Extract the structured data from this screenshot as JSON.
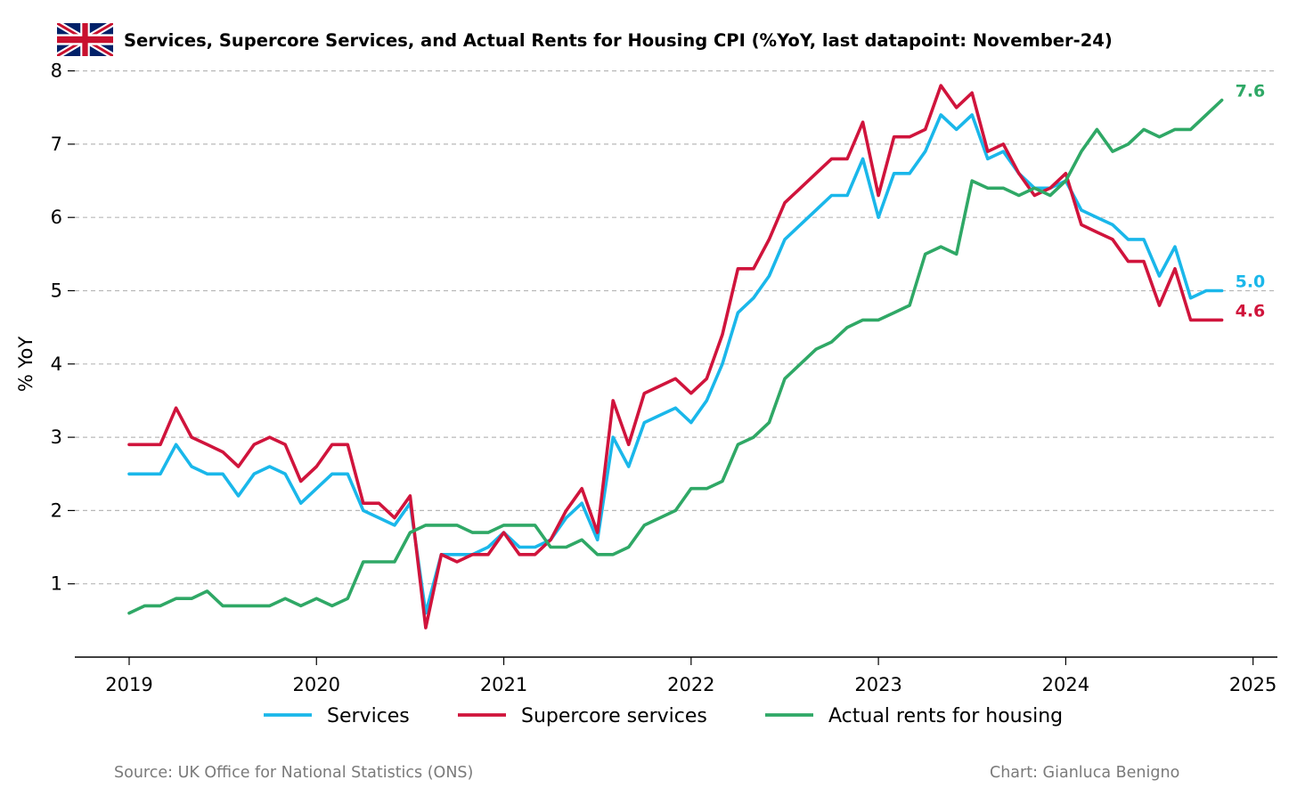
{
  "chart_data": {
    "type": "line",
    "title": "Services, Supercore Services, and Actual Rents for Housing CPI (%YoY, last datapoint: November-24)",
    "flag_icon": "uk-flag-icon",
    "ylabel": "% YoY",
    "xlabel": "",
    "ylim": [
      0,
      8
    ],
    "xlim": [
      2018.71,
      2025.13
    ],
    "yticks": [
      1,
      2,
      3,
      4,
      5,
      6,
      7,
      8
    ],
    "xticks": [
      "2019",
      "2020",
      "2021",
      "2022",
      "2023",
      "2024",
      "2025"
    ],
    "grid": "horizontal dashed",
    "legend_position": "bottom",
    "start": "2019-01",
    "series": [
      {
        "name": "Services",
        "color": "#1ab7ea",
        "end_label": "5.0",
        "values": [
          2.5,
          2.5,
          2.5,
          2.9,
          2.6,
          2.5,
          2.5,
          2.2,
          2.5,
          2.6,
          2.5,
          2.1,
          2.3,
          2.5,
          2.5,
          2.0,
          1.9,
          1.8,
          2.1,
          0.6,
          1.4,
          1.4,
          1.4,
          1.5,
          1.7,
          1.5,
          1.5,
          1.6,
          1.9,
          2.1,
          1.6,
          3.0,
          2.6,
          3.2,
          3.3,
          3.4,
          3.2,
          3.5,
          4.0,
          4.7,
          4.9,
          5.2,
          5.7,
          5.9,
          6.1,
          6.3,
          6.3,
          6.8,
          6.0,
          6.6,
          6.6,
          6.9,
          7.4,
          7.2,
          7.4,
          6.8,
          6.9,
          6.6,
          6.4,
          6.4,
          6.5,
          6.1,
          6.0,
          5.9,
          5.7,
          5.7,
          5.2,
          5.6,
          4.9,
          5.0,
          5.0
        ]
      },
      {
        "name": "Supercore services",
        "color": "#d0143c",
        "end_label": "4.6",
        "values": [
          2.9,
          2.9,
          2.9,
          3.4,
          3.0,
          2.9,
          2.8,
          2.6,
          2.9,
          3.0,
          2.9,
          2.4,
          2.6,
          2.9,
          2.9,
          2.1,
          2.1,
          1.9,
          2.2,
          0.4,
          1.4,
          1.3,
          1.4,
          1.4,
          1.7,
          1.4,
          1.4,
          1.6,
          2.0,
          2.3,
          1.7,
          3.5,
          2.9,
          3.6,
          3.7,
          3.8,
          3.6,
          3.8,
          4.4,
          5.3,
          5.3,
          5.7,
          6.2,
          6.4,
          6.6,
          6.8,
          6.8,
          7.3,
          6.3,
          7.1,
          7.1,
          7.2,
          7.8,
          7.5,
          7.7,
          6.9,
          7.0,
          6.6,
          6.3,
          6.4,
          6.6,
          5.9,
          5.8,
          5.7,
          5.4,
          5.4,
          4.8,
          5.3,
          4.6,
          4.6,
          4.6
        ]
      },
      {
        "name": "Actual rents for housing",
        "color": "#2fa866",
        "end_label": "7.6",
        "values": [
          0.6,
          0.7,
          0.7,
          0.8,
          0.8,
          0.9,
          0.7,
          0.7,
          0.7,
          0.7,
          0.8,
          0.7,
          0.8,
          0.7,
          0.8,
          1.3,
          1.3,
          1.3,
          1.7,
          1.8,
          1.8,
          1.8,
          1.7,
          1.7,
          1.8,
          1.8,
          1.8,
          1.5,
          1.5,
          1.6,
          1.4,
          1.4,
          1.5,
          1.8,
          1.9,
          2.0,
          2.3,
          2.3,
          2.4,
          2.9,
          3.0,
          3.2,
          3.8,
          4.0,
          4.2,
          4.3,
          4.5,
          4.6,
          4.6,
          4.7,
          4.8,
          5.5,
          5.6,
          5.5,
          6.5,
          6.4,
          6.4,
          6.3,
          6.4,
          6.3,
          6.5,
          6.9,
          7.2,
          6.9,
          7.0,
          7.2,
          7.1,
          7.2,
          7.2,
          7.4,
          7.6
        ]
      }
    ]
  },
  "footer": {
    "source": "Source: UK Office for National Statistics (ONS)",
    "credit": "Chart: Gianluca Benigno"
  }
}
